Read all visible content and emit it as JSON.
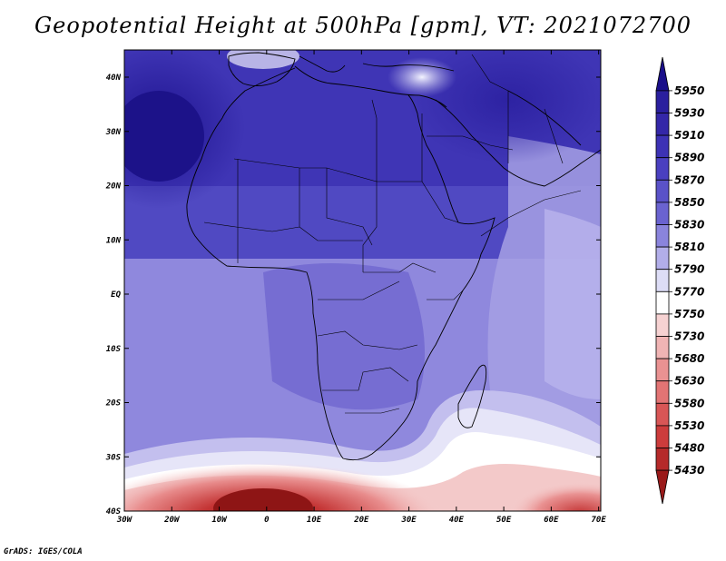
{
  "title": "Geopotential Height at 500hPa [gpm], VT: 2021072700",
  "credit": "GrADS: IGES/COLA",
  "lon_ticks": [
    "30W",
    "20W",
    "10W",
    "0",
    "10E",
    "20E",
    "30E",
    "40E",
    "50E",
    "60E",
    "70E"
  ],
  "lat_ticks": [
    "40N",
    "30N",
    "20N",
    "10N",
    "EQ",
    "10S",
    "20S",
    "30S",
    "40S"
  ],
  "colorbar": {
    "labels": [
      "5950",
      "5930",
      "5910",
      "5890",
      "5870",
      "5850",
      "5830",
      "5810",
      "5790",
      "5770",
      "5750",
      "5730",
      "5680",
      "5630",
      "5580",
      "5530",
      "5480",
      "5430"
    ],
    "colors": [
      "#1a0f8a",
      "#2a1f9e",
      "#3427a8",
      "#3d32b5",
      "#4a40c0",
      "#5a52c8",
      "#6a63d0",
      "#8a84dc",
      "#b2aee9",
      "#ddddf6",
      "#ffffff",
      "#f6d2d2",
      "#f0b4b4",
      "#e99292",
      "#e27474",
      "#d85656",
      "#cc3c3c",
      "#b52a2a",
      "#9a1a1a"
    ]
  }
}
